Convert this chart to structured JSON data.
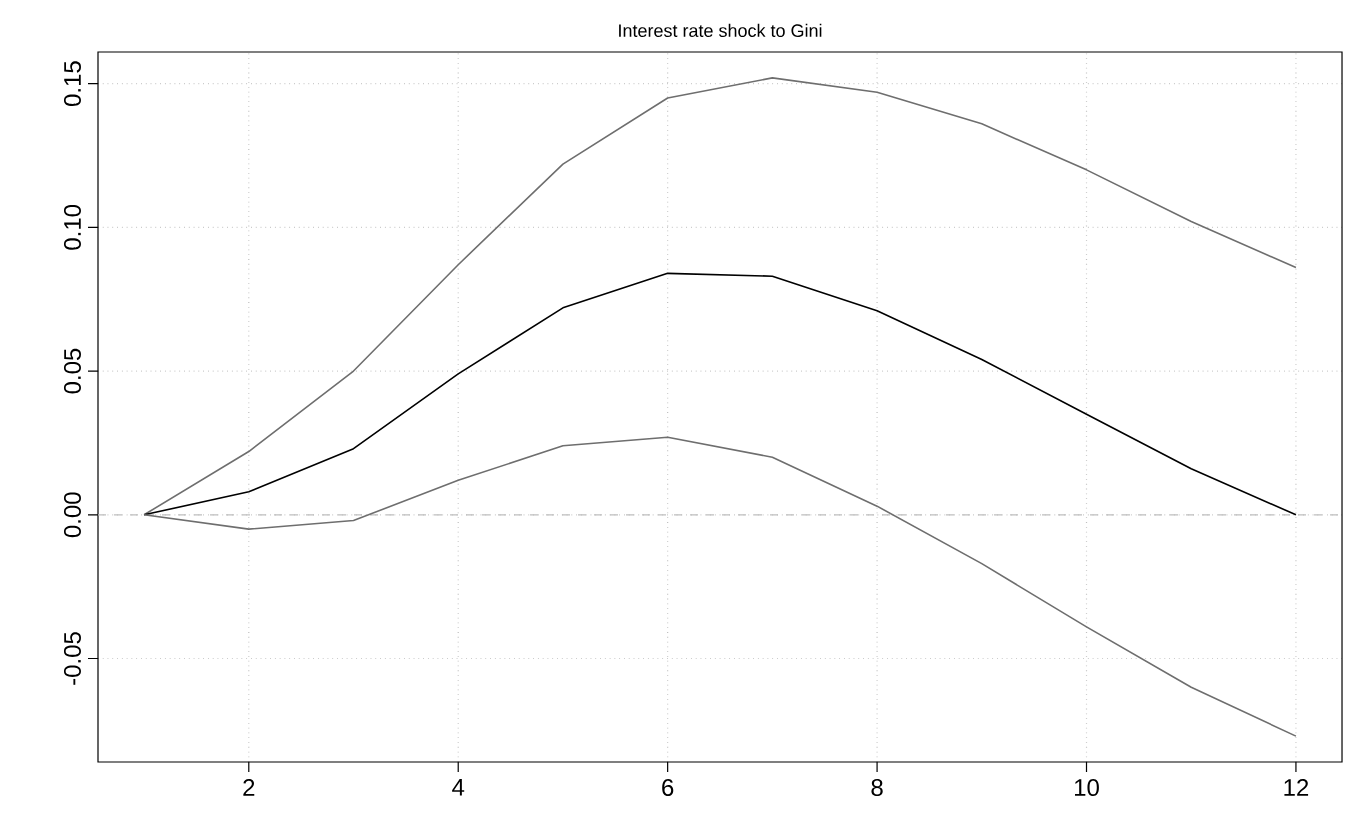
{
  "chart_data": {
    "type": "line",
    "title": "Interest rate shock to Gini",
    "x": [
      1,
      2,
      3,
      4,
      5,
      6,
      7,
      8,
      9,
      10,
      11,
      12
    ],
    "series": [
      {
        "color": "#6e6e6e",
        "values": [
          0,
          0.022,
          0.05,
          0.087,
          0.122,
          0.145,
          0.152,
          0.147,
          0.136,
          0.12,
          0.102,
          0.086
        ]
      },
      {
        "color": "#000000",
        "values": [
          0,
          0.008,
          0.023,
          0.049,
          0.072,
          0.084,
          0.083,
          0.071,
          0.054,
          0.035,
          0.016,
          0.0
        ]
      },
      {
        "color": "#6e6e6e",
        "values": [
          0,
          -0.005,
          -0.002,
          0.012,
          0.024,
          0.027,
          0.02,
          0.003,
          -0.017,
          -0.039,
          -0.06,
          -0.077
        ]
      }
    ],
    "xlim": [
      0.56,
      12.44
    ],
    "ylim": [
      -0.086,
      0.161
    ],
    "xticks": [
      2,
      4,
      6,
      8,
      10,
      12
    ],
    "yticks": [
      {
        "value": -0.05,
        "label": "-0.05"
      },
      {
        "value": 0,
        "label": "0.00"
      },
      {
        "value": 0.05,
        "label": "0.05"
      },
      {
        "value": 0.1,
        "label": "0.10"
      },
      {
        "value": 0.15,
        "label": "0.15"
      }
    ],
    "grid": true,
    "line_style": "solid",
    "ref_lines": [
      {
        "axis": "y",
        "value": 0,
        "color": "#bebebe",
        "line_style": "dashed"
      }
    ]
  }
}
